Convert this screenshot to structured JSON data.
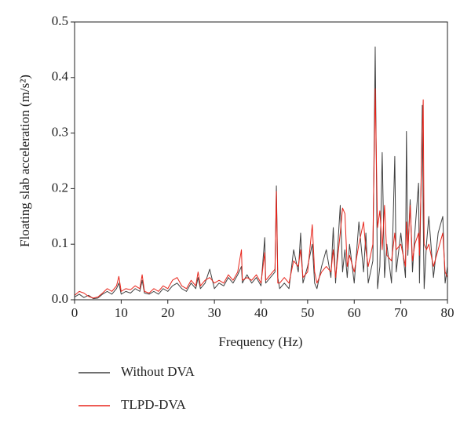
{
  "chart_data": {
    "type": "line",
    "xlabel": "Frequency (Hz)",
    "ylabel": "Floating slab acceleration (m/s²)",
    "xlim": [
      0,
      80
    ],
    "xticks": [
      0,
      10,
      20,
      30,
      40,
      50,
      60,
      70,
      80
    ],
    "ylim": [
      0,
      0.5
    ],
    "yticks": [
      {
        "value": 0,
        "label": "0.0"
      },
      0.1,
      0.2,
      0.3,
      0.4,
      0.5
    ],
    "x": [
      0,
      1,
      2,
      3,
      4,
      5,
      6,
      7,
      8,
      9,
      9.5,
      10,
      11,
      12,
      13,
      14,
      14.5,
      15,
      16,
      17,
      18,
      19,
      20,
      21,
      22,
      23,
      24,
      25,
      26,
      26.5,
      27,
      28,
      29,
      30,
      31,
      32,
      33,
      34,
      35,
      35.8,
      36,
      37,
      38,
      39,
      40,
      40.8,
      41,
      42,
      43,
      43.3,
      43.6,
      44,
      45,
      46,
      47,
      48,
      48.5,
      49,
      50,
      51,
      51.5,
      52,
      53,
      54,
      55,
      55.5,
      56,
      57,
      57.5,
      58,
      58.5,
      59,
      60,
      61,
      62,
      62.5,
      63,
      64,
      64.5,
      65,
      65.5,
      66,
      66.5,
      67,
      68,
      68.7,
      69,
      70,
      71,
      71.2,
      71.5,
      72,
      72.5,
      73,
      73.8,
      74,
      74.6,
      74.8,
      75,
      75.5,
      76,
      77,
      78,
      79,
      79.5,
      80
    ],
    "series": [
      {
        "name": "Without DVA",
        "color": "#404040",
        "values": [
          0.005,
          0.01,
          0.004,
          0.008,
          0.002,
          0.003,
          0.01,
          0.015,
          0.01,
          0.02,
          0.03,
          0.01,
          0.015,
          0.012,
          0.02,
          0.015,
          0.035,
          0.012,
          0.01,
          0.015,
          0.01,
          0.02,
          0.015,
          0.025,
          0.03,
          0.02,
          0.015,
          0.03,
          0.02,
          0.04,
          0.02,
          0.03,
          0.055,
          0.02,
          0.03,
          0.025,
          0.04,
          0.03,
          0.045,
          0.06,
          0.03,
          0.045,
          0.03,
          0.04,
          0.025,
          0.112,
          0.03,
          0.04,
          0.05,
          0.205,
          0.04,
          0.02,
          0.03,
          0.02,
          0.09,
          0.05,
          0.12,
          0.03,
          0.06,
          0.1,
          0.03,
          0.02,
          0.06,
          0.09,
          0.04,
          0.13,
          0.03,
          0.17,
          0.05,
          0.09,
          0.04,
          0.1,
          0.03,
          0.14,
          0.05,
          0.12,
          0.03,
          0.07,
          0.455,
          0.02,
          0.06,
          0.265,
          0.04,
          0.1,
          0.03,
          0.258,
          0.05,
          0.12,
          0.04,
          0.303,
          0.08,
          0.18,
          0.05,
          0.12,
          0.21,
          0.03,
          0.35,
          0.15,
          0.02,
          0.1,
          0.15,
          0.04,
          0.12,
          0.15,
          0.03,
          0.06
        ]
      },
      {
        "name": "TLPD-DVA",
        "color": "#e8251b",
        "values": [
          0.008,
          0.015,
          0.012,
          0.006,
          0.003,
          0.005,
          0.012,
          0.02,
          0.015,
          0.025,
          0.042,
          0.015,
          0.02,
          0.018,
          0.025,
          0.02,
          0.045,
          0.015,
          0.012,
          0.02,
          0.015,
          0.025,
          0.02,
          0.035,
          0.04,
          0.025,
          0.02,
          0.035,
          0.025,
          0.05,
          0.025,
          0.035,
          0.04,
          0.03,
          0.035,
          0.03,
          0.045,
          0.035,
          0.05,
          0.09,
          0.035,
          0.04,
          0.035,
          0.045,
          0.03,
          0.085,
          0.035,
          0.045,
          0.055,
          0.195,
          0.03,
          0.03,
          0.04,
          0.03,
          0.07,
          0.06,
          0.09,
          0.04,
          0.05,
          0.135,
          0.05,
          0.03,
          0.05,
          0.06,
          0.05,
          0.09,
          0.04,
          0.12,
          0.165,
          0.155,
          0.06,
          0.08,
          0.05,
          0.1,
          0.14,
          0.09,
          0.06,
          0.1,
          0.38,
          0.13,
          0.16,
          0.09,
          0.17,
          0.08,
          0.07,
          0.12,
          0.09,
          0.1,
          0.06,
          0.14,
          0.09,
          0.17,
          0.07,
          0.1,
          0.12,
          0.08,
          0.3,
          0.36,
          0.1,
          0.09,
          0.1,
          0.06,
          0.09,
          0.12,
          0.05,
          0.04
        ]
      }
    ]
  }
}
